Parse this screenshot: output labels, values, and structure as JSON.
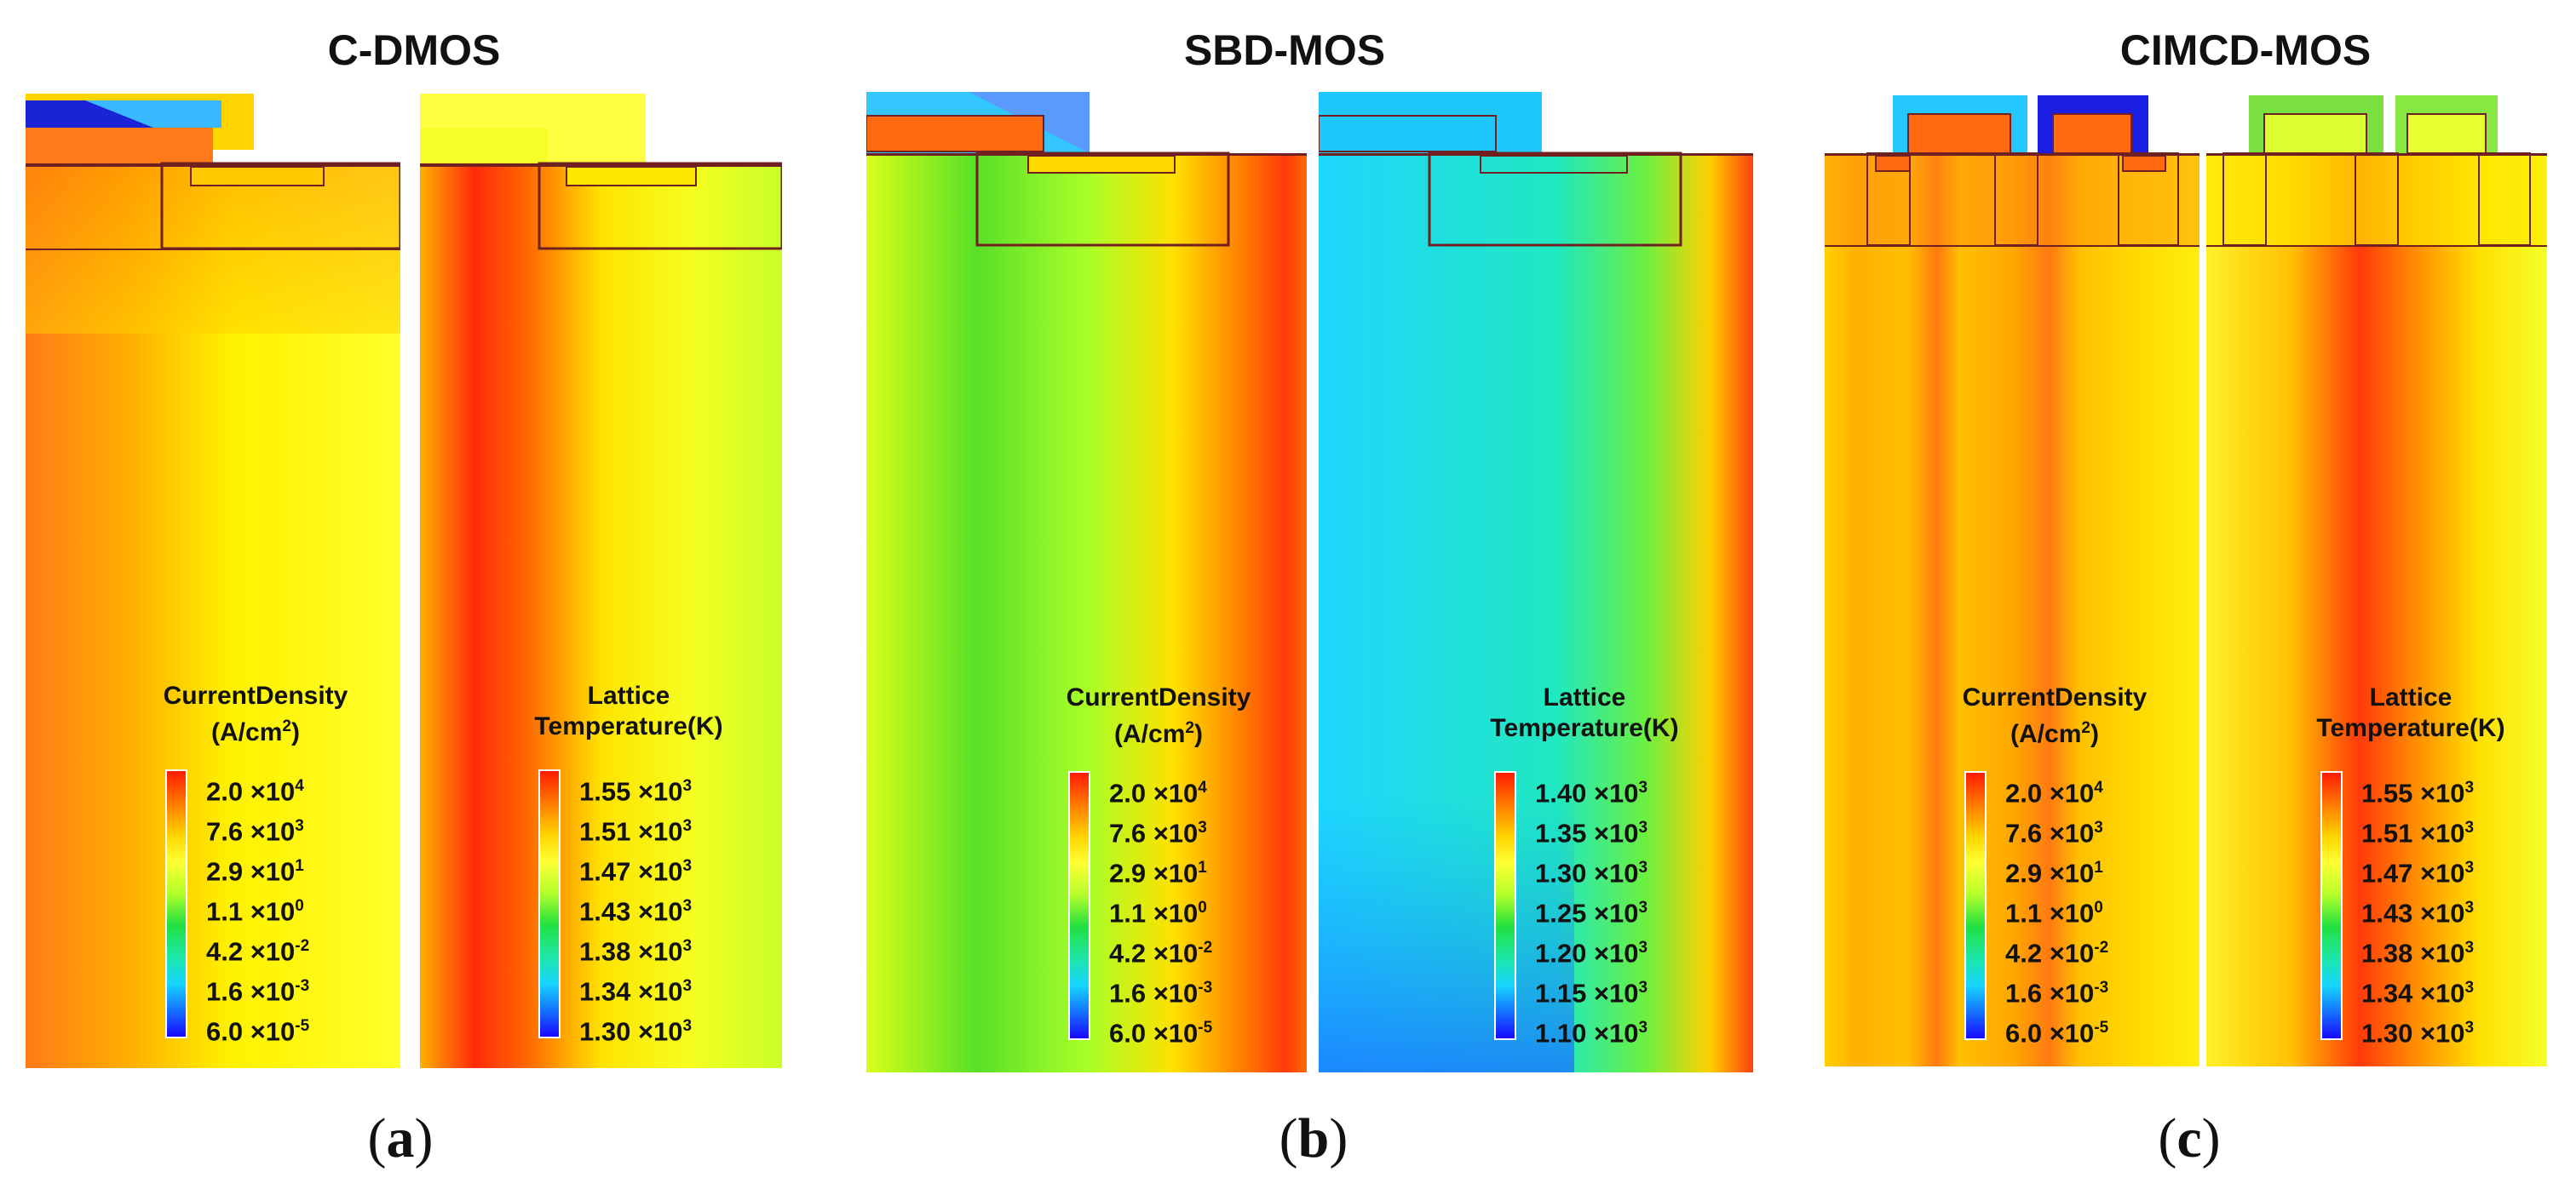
{
  "panels": {
    "a": {
      "title": "C-DMOS",
      "label_open": "(",
      "label_letter": "a",
      "label_close": ")",
      "current": {
        "title_line1": "CurrentDensity",
        "title_line2": "(A/cm",
        "title_sup": "2",
        "title_end": ")",
        "ticks": [
          [
            "2.0 ×10",
            "4"
          ],
          [
            "7.6 ×10",
            "3"
          ],
          [
            "2.9 ×10",
            "1"
          ],
          [
            "1.1 ×10",
            "0"
          ],
          [
            "4.2 ×10",
            "-2"
          ],
          [
            "1.6 ×10",
            "-3"
          ],
          [
            "6.0 ×10",
            "-5"
          ]
        ]
      },
      "temp": {
        "title_line1": "Lattice",
        "title_line2": "Temperature(K)",
        "ticks": [
          [
            "1.55 ×10",
            "3"
          ],
          [
            "1.51 ×10",
            "3"
          ],
          [
            "1.47 ×10",
            "3"
          ],
          [
            "1.43 ×10",
            "3"
          ],
          [
            "1.38 ×10",
            "3"
          ],
          [
            "1.34 ×10",
            "3"
          ],
          [
            "1.30 ×10",
            "3"
          ]
        ]
      }
    },
    "b": {
      "title": "SBD-MOS",
      "label_open": "(",
      "label_letter": "b",
      "label_close": ")",
      "current": {
        "title_line1": "CurrentDensity",
        "title_line2": "(A/cm",
        "title_sup": "2",
        "title_end": ")",
        "ticks": [
          [
            "2.0 ×10",
            "4"
          ],
          [
            "7.6 ×10",
            "3"
          ],
          [
            "2.9 ×10",
            "1"
          ],
          [
            "1.1 ×10",
            "0"
          ],
          [
            "4.2 ×10",
            "-2"
          ],
          [
            "1.6 ×10",
            "-3"
          ],
          [
            "6.0 ×10",
            "-5"
          ]
        ]
      },
      "temp": {
        "title_line1": "Lattice",
        "title_line2": "Temperature(K)",
        "ticks": [
          [
            "1.40 ×10",
            "3"
          ],
          [
            "1.35 ×10",
            "3"
          ],
          [
            "1.30 ×10",
            "3"
          ],
          [
            "1.25 ×10",
            "3"
          ],
          [
            "1.20 ×10",
            "3"
          ],
          [
            "1.15 ×10",
            "3"
          ],
          [
            "1.10 ×10",
            "3"
          ]
        ]
      }
    },
    "c": {
      "title": "CIMCD-MOS",
      "label_open": "(",
      "label_letter": "c",
      "label_close": ")",
      "current": {
        "title_line1": "CurrentDensity",
        "title_line2": "(A/cm",
        "title_sup": "2",
        "title_end": ")",
        "ticks": [
          [
            "2.0 ×10",
            "4"
          ],
          [
            "7.6 ×10",
            "3"
          ],
          [
            "2.9 ×10",
            "1"
          ],
          [
            "1.1 ×10",
            "0"
          ],
          [
            "4.2 ×10",
            "-2"
          ],
          [
            "1.6 ×10",
            "-3"
          ],
          [
            "6.0 ×10",
            "-5"
          ]
        ]
      },
      "temp": {
        "title_line1": "Lattice",
        "title_line2": "Temperature(K)",
        "ticks": [
          [
            "1.55 ×10",
            "3"
          ],
          [
            "1.51 ×10",
            "3"
          ],
          [
            "1.47 ×10",
            "3"
          ],
          [
            "1.43 ×10",
            "3"
          ],
          [
            "1.38 ×10",
            "3"
          ],
          [
            "1.34 ×10",
            "3"
          ],
          [
            "1.30 ×10",
            "3"
          ]
        ]
      }
    }
  }
}
